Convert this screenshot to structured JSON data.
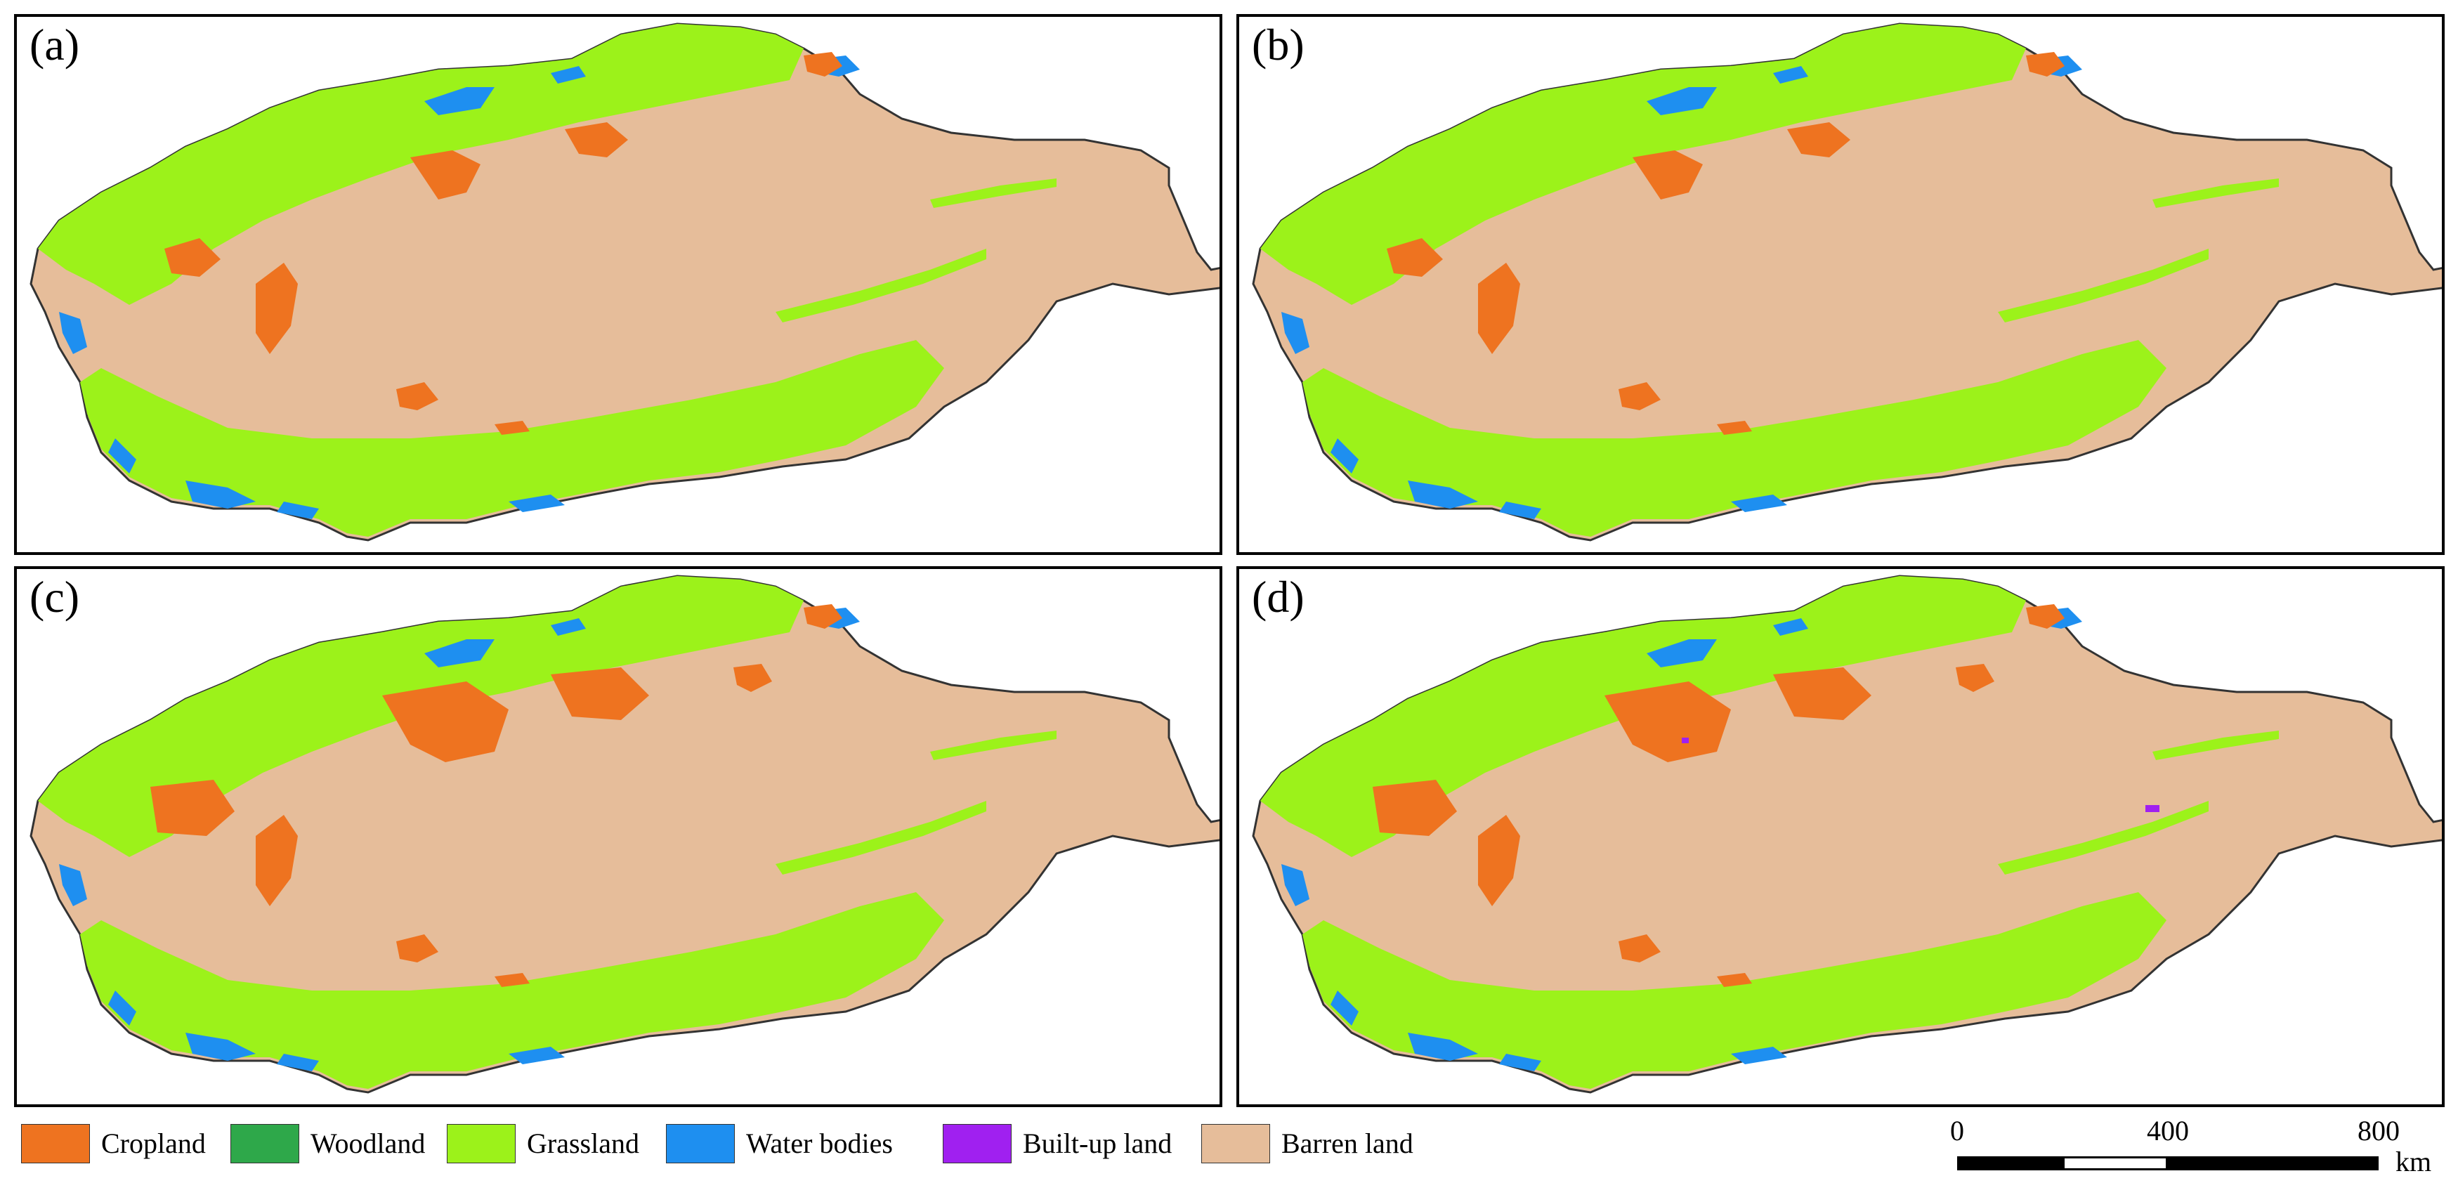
{
  "colors": {
    "cropland": "#ee7320",
    "woodland": "#2ea84a",
    "grassland": "#9cf21a",
    "water": "#1e8ff0",
    "builtup": "#a020f0",
    "barren": "#e6bd9a",
    "outline": "#333333"
  },
  "panels": [
    {
      "label": "(a)"
    },
    {
      "label": "(b)"
    },
    {
      "label": "(c)"
    },
    {
      "label": "(d)"
    }
  ],
  "legend": [
    {
      "label": "Cropland",
      "color": "#ee7320"
    },
    {
      "label": "Woodland",
      "color": "#2ea84a"
    },
    {
      "label": "Grassland",
      "color": "#9cf21a"
    },
    {
      "label": "Water bodies",
      "color": "#1e8ff0"
    },
    {
      "label": "Built-up land",
      "color": "#a020f0"
    },
    {
      "label": "Barren land",
      "color": "#e6bd9a"
    }
  ],
  "scale_bar": {
    "ticks": [
      "0",
      "400",
      "800"
    ],
    "unit": "km"
  }
}
